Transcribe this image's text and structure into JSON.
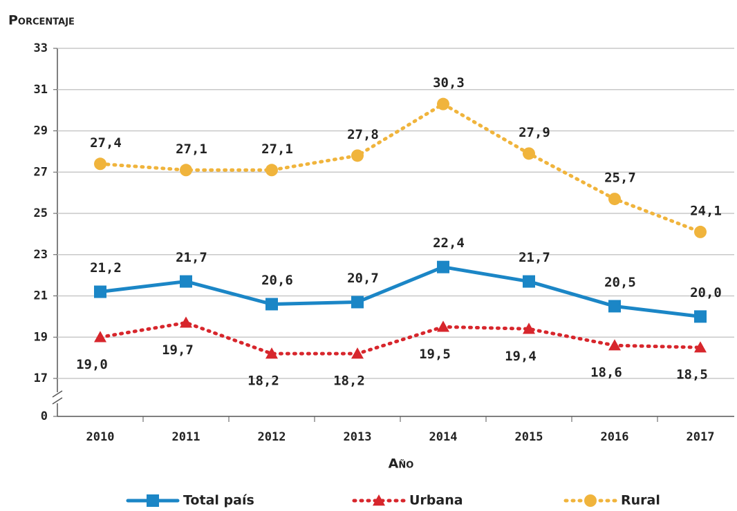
{
  "chart_data": {
    "type": "line",
    "y_label": "Porcentaje",
    "x_label": "Año",
    "categories": [
      "2010",
      "2011",
      "2012",
      "2013",
      "2014",
      "2015",
      "2016",
      "2017"
    ],
    "series": [
      {
        "name": "Total país",
        "color": "#1b86c6",
        "style": "solid",
        "marker": "square",
        "values": [
          21.2,
          21.7,
          20.6,
          20.7,
          22.4,
          21.7,
          20.5,
          20.0
        ],
        "value_labels": [
          "21,2",
          "21,7",
          "20,6",
          "20,7",
          "22,4",
          "21,7",
          "20,5",
          "20,0"
        ]
      },
      {
        "name": "Urbana",
        "color": "#d7262c",
        "style": "dotted",
        "marker": "triangle",
        "values": [
          19.0,
          19.7,
          18.2,
          18.2,
          19.5,
          19.4,
          18.6,
          18.5
        ],
        "value_labels": [
          "19,0",
          "19,7",
          "18,2",
          "18,2",
          "19,5",
          "19,4",
          "18,6",
          "18,5"
        ]
      },
      {
        "name": "Rural",
        "color": "#f0b43c",
        "style": "dotted",
        "marker": "circle",
        "values": [
          27.4,
          27.1,
          27.1,
          27.8,
          30.3,
          27.9,
          25.7,
          24.1
        ],
        "value_labels": [
          "27,4",
          "27,1",
          "27,1",
          "27,8",
          "30,3",
          "27,9",
          "25,7",
          "24,1"
        ]
      }
    ],
    "ylim": [
      0,
      33
    ],
    "ybreak": [
      0,
      17
    ],
    "yticks": [
      0,
      17,
      19,
      21,
      23,
      25,
      27,
      29,
      31,
      33
    ],
    "grid": true,
    "legend": "bottom"
  }
}
